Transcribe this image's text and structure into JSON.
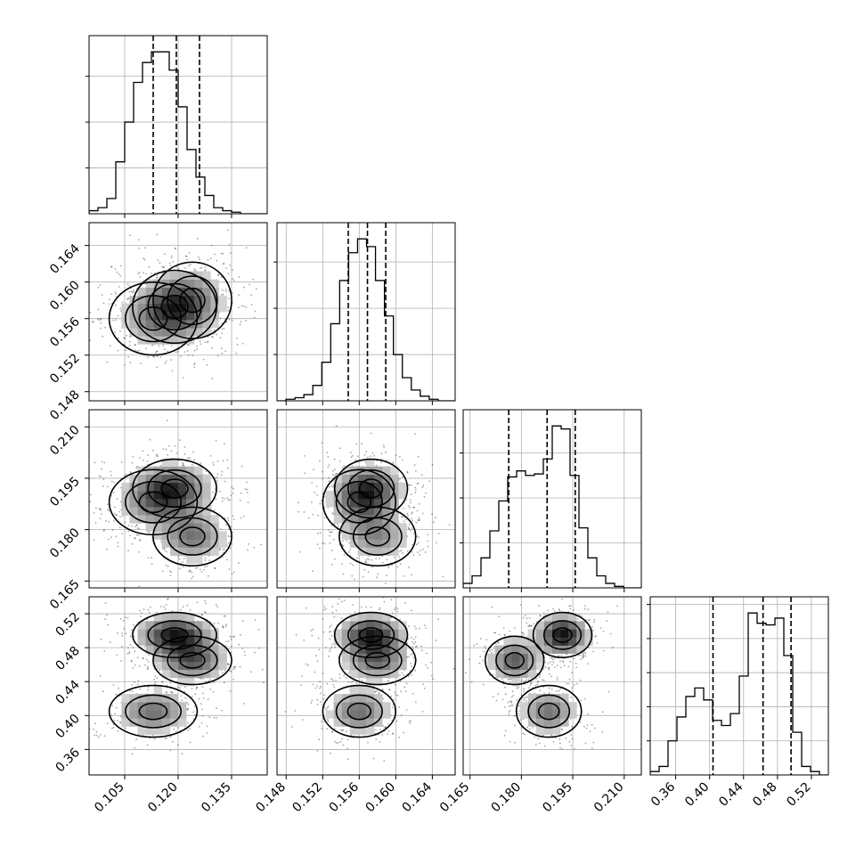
{
  "chart_data": {
    "type": "corner",
    "parameters": [
      {
        "range": [
          0.095,
          0.145
        ],
        "ticks": [
          0.105,
          0.12,
          0.135
        ],
        "tick_labels": [
          "0.105",
          "0.120",
          "0.135"
        ],
        "quantiles": [
          0.113,
          0.1195,
          0.126
        ],
        "hist": {
          "edges_start": 0.095,
          "bin_width": 0.0025,
          "counts": [
            2,
            4,
            10,
            34,
            60,
            86,
            99,
            106,
            106,
            94,
            70,
            42,
            24,
            12,
            4,
            2,
            1,
            0,
            0,
            0
          ]
        }
      },
      {
        "range": [
          0.147,
          0.1665
        ],
        "ticks": [
          0.148,
          0.152,
          0.156,
          0.16,
          0.164
        ],
        "tick_labels": [
          "0.148",
          "0.152",
          "0.156",
          "0.160",
          "0.164"
        ],
        "quantiles": [
          0.1548,
          0.1569,
          0.1589
        ],
        "hist": {
          "edges_start": 0.147,
          "bin_width": 0.00098,
          "counts": [
            0,
            1,
            2,
            4,
            10,
            25,
            50,
            78,
            96,
            105,
            100,
            78,
            55,
            30,
            15,
            7,
            3,
            1,
            0,
            0
          ]
        }
      },
      {
        "range": [
          0.163,
          0.215
        ],
        "ticks": [
          0.165,
          0.18,
          0.195,
          0.21
        ],
        "tick_labels": [
          "0.165",
          "0.180",
          "0.195",
          "0.210"
        ],
        "quantiles": [
          0.1763,
          0.1875,
          0.1957
        ],
        "hist": {
          "edges_start": 0.163,
          "bin_width": 0.0026,
          "counts": [
            3,
            8,
            20,
            38,
            58,
            74,
            78,
            75,
            76,
            86,
            108,
            106,
            75,
            40,
            20,
            8,
            3,
            1,
            0,
            0
          ]
        }
      },
      {
        "range": [
          0.33,
          0.54
        ],
        "ticks": [
          0.36,
          0.4,
          0.44,
          0.48,
          0.52
        ],
        "tick_labels": [
          "0.36",
          "0.40",
          "0.44",
          "0.48",
          "0.52"
        ],
        "quantiles": [
          0.404,
          0.463,
          0.496
        ],
        "hist": {
          "edges_start": 0.33,
          "bin_width": 0.0105,
          "counts": [
            2,
            5,
            20,
            34,
            46,
            51,
            44,
            32,
            29,
            36,
            58,
            95,
            89,
            88,
            92,
            70,
            25,
            5,
            2,
            0
          ]
        }
      }
    ],
    "components": [
      {
        "mu": [
          0.119,
          0.1573,
          0.192,
          0.495
        ],
        "sd": [
          0.0062,
          0.0021,
          0.0045,
          0.014
        ],
        "weight": 0.4
      },
      {
        "mu": [
          0.124,
          0.158,
          0.178,
          0.465
        ],
        "sd": [
          0.0058,
          0.0022,
          0.0045,
          0.015
        ],
        "weight": 0.3
      },
      {
        "mu": [
          0.113,
          0.156,
          0.188,
          0.405
        ],
        "sd": [
          0.0065,
          0.0021,
          0.005,
          0.016
        ],
        "weight": 0.3
      }
    ],
    "contour_levels": [
      0.393,
      0.865,
      0.989
    ]
  }
}
